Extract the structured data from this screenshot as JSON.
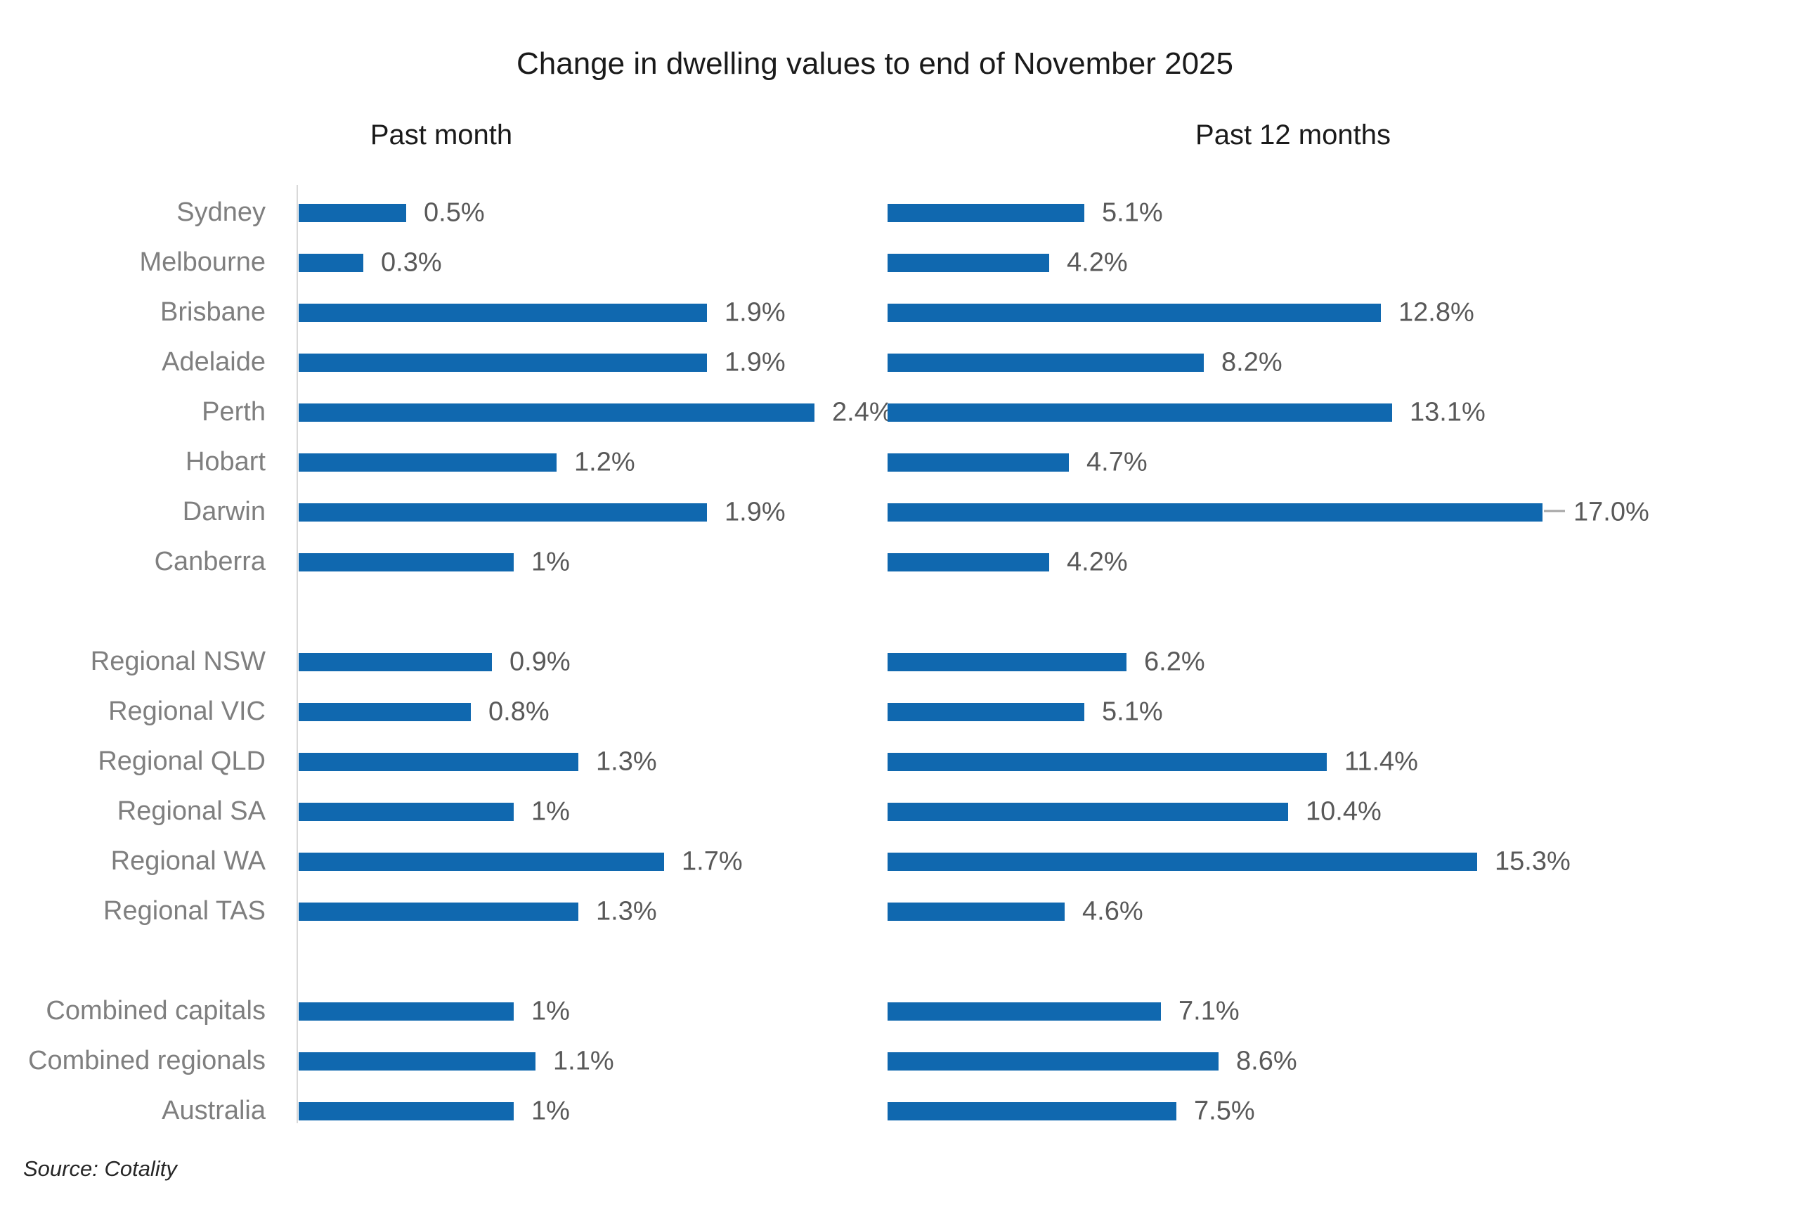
{
  "title": "Change in dwelling values to end of November 2025",
  "source": "Source: Cotality",
  "colors": {
    "bar": "#1068af",
    "category_label": "#7f7f7f",
    "value_label": "#595959",
    "axis_line": "#d9d9d9",
    "leader_line": "#a6a6a6",
    "heading": "#1a1a1a"
  },
  "chart_data": {
    "type": "bar",
    "orientation": "horizontal",
    "title": "Change in dwelling values to end of November 2025",
    "xlabel": "",
    "ylabel": "",
    "grid": false,
    "legend": "none",
    "panels": [
      {
        "label": "Past month",
        "xlim": [
          0,
          3
        ],
        "value_suffix": "%"
      },
      {
        "label": "Past 12 months",
        "xlim": [
          0,
          17
        ],
        "value_suffix": "%"
      }
    ],
    "groups": [
      {
        "rows": [
          {
            "label": "Sydney",
            "past_month": 0.5,
            "past_month_text": "0.5%",
            "past_12_months": 5.1,
            "past_12_months_text": "5.1%"
          },
          {
            "label": "Melbourne",
            "past_month": 0.3,
            "past_month_text": "0.3%",
            "past_12_months": 4.2,
            "past_12_months_text": "4.2%"
          },
          {
            "label": "Brisbane",
            "past_month": 1.9,
            "past_month_text": "1.9%",
            "past_12_months": 12.8,
            "past_12_months_text": "12.8%"
          },
          {
            "label": "Adelaide",
            "past_month": 1.9,
            "past_month_text": "1.9%",
            "past_12_months": 8.2,
            "past_12_months_text": "8.2%"
          },
          {
            "label": "Perth",
            "past_month": 2.4,
            "past_month_text": "2.4%",
            "past_12_months": 13.1,
            "past_12_months_text": "13.1%"
          },
          {
            "label": "Hobart",
            "past_month": 1.2,
            "past_month_text": "1.2%",
            "past_12_months": 4.7,
            "past_12_months_text": "4.7%"
          },
          {
            "label": "Darwin",
            "past_month": 1.9,
            "past_month_text": "1.9%",
            "past_12_months": 17.0,
            "past_12_months_text": "17.0%",
            "callout_12m": true
          },
          {
            "label": "Canberra",
            "past_month": 1.0,
            "past_month_text": "1%",
            "past_12_months": 4.2,
            "past_12_months_text": "4.2%"
          }
        ]
      },
      {
        "rows": [
          {
            "label": "Regional NSW",
            "past_month": 0.9,
            "past_month_text": "0.9%",
            "past_12_months": 6.2,
            "past_12_months_text": "6.2%"
          },
          {
            "label": "Regional VIC",
            "past_month": 0.8,
            "past_month_text": "0.8%",
            "past_12_months": 5.1,
            "past_12_months_text": "5.1%"
          },
          {
            "label": "Regional QLD",
            "past_month": 1.3,
            "past_month_text": "1.3%",
            "past_12_months": 11.4,
            "past_12_months_text": "11.4%"
          },
          {
            "label": "Regional SA",
            "past_month": 1.0,
            "past_month_text": "1%",
            "past_12_months": 10.4,
            "past_12_months_text": "10.4%"
          },
          {
            "label": "Regional WA",
            "past_month": 1.7,
            "past_month_text": "1.7%",
            "past_12_months": 15.3,
            "past_12_months_text": "15.3%"
          },
          {
            "label": "Regional TAS",
            "past_month": 1.3,
            "past_month_text": "1.3%",
            "past_12_months": 4.6,
            "past_12_months_text": "4.6%"
          }
        ]
      },
      {
        "rows": [
          {
            "label": "Combined capitals",
            "past_month": 1.0,
            "past_month_text": "1%",
            "past_12_months": 7.1,
            "past_12_months_text": "7.1%"
          },
          {
            "label": "Combined regionals",
            "past_month": 1.1,
            "past_month_text": "1.1%",
            "past_12_months": 8.6,
            "past_12_months_text": "8.6%"
          },
          {
            "label": "Australia",
            "past_month": 1.0,
            "past_month_text": "1%",
            "past_12_months": 7.5,
            "past_12_months_text": "7.5%"
          }
        ]
      }
    ]
  }
}
